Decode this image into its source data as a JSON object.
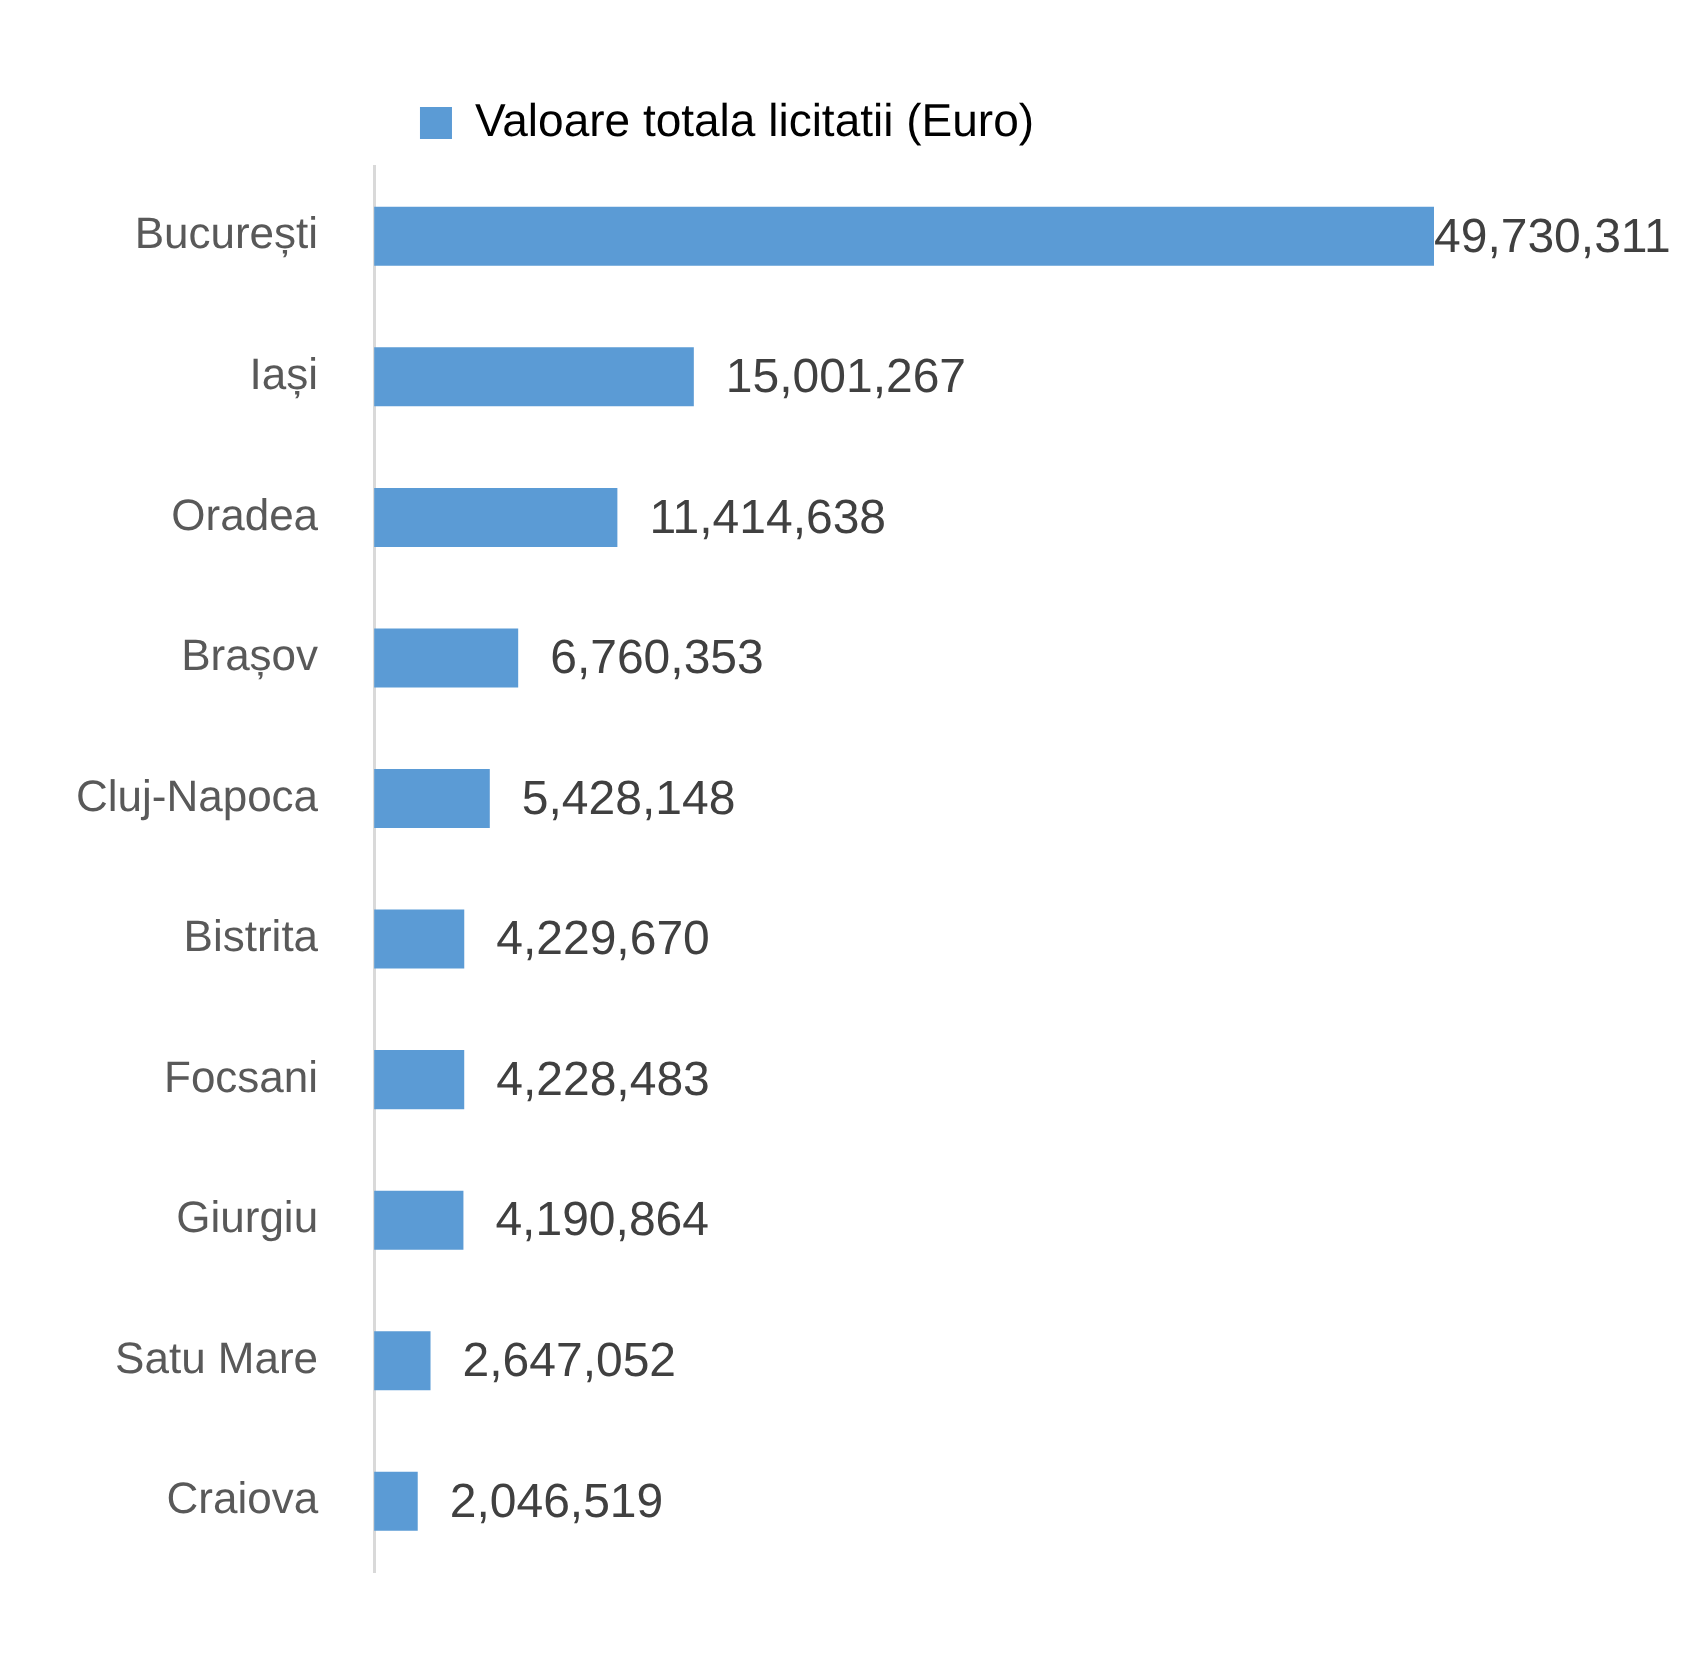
{
  "chart_data": {
    "type": "bar",
    "orientation": "horizontal",
    "categories": [
      "București",
      "Iași",
      "Oradea",
      "Brașov",
      "Cluj-Napoca",
      "Bistrita",
      "Focsani",
      "Giurgiu",
      "Satu Mare",
      "Craiova"
    ],
    "series": [
      {
        "name": "Valoare totala licitatii (Euro)",
        "color": "#5b9bd5",
        "values": [
          49730311,
          15001267,
          11414638,
          6760353,
          5428148,
          4229670,
          4228483,
          4190864,
          2647052,
          2046519
        ],
        "value_labels": [
          "49,730,311",
          "15,001,267",
          "11,414,638",
          "6,760,353",
          "5,428,148",
          "4,229,670",
          "4,228,483",
          "4,190,864",
          "2,647,052",
          "2,046,519"
        ]
      }
    ],
    "legend": "top"
  }
}
